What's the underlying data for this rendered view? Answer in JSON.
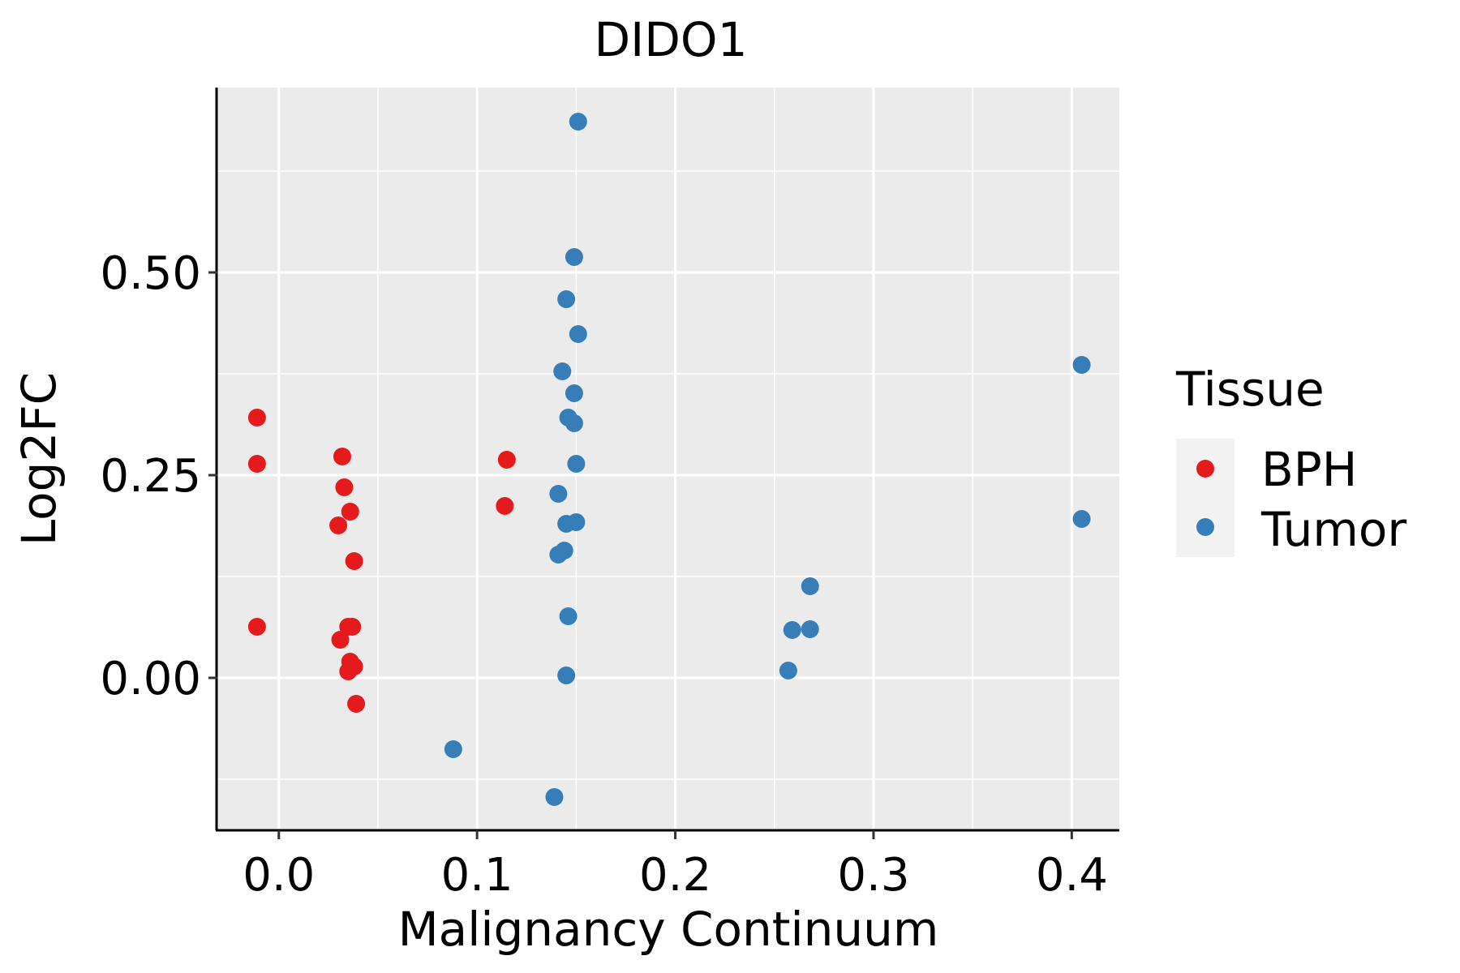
{
  "chart_data": {
    "type": "scatter",
    "title": "DIDO1",
    "xlabel": "Malignancy Continuum",
    "ylabel": "Log2FC",
    "xlim": [
      -0.031,
      0.424
    ],
    "ylim": [
      -0.188,
      0.728
    ],
    "x_ticks": [
      {
        "value": 0.0,
        "label": "0.0"
      },
      {
        "value": 0.1,
        "label": "0.1"
      },
      {
        "value": 0.2,
        "label": "0.2"
      },
      {
        "value": 0.3,
        "label": "0.3"
      },
      {
        "value": 0.4,
        "label": "0.4"
      }
    ],
    "y_ticks": [
      {
        "value": 0.0,
        "label": "0.00"
      },
      {
        "value": 0.25,
        "label": "0.25"
      },
      {
        "value": 0.5,
        "label": "0.50"
      }
    ],
    "x_minor": [
      0.05,
      0.15,
      0.25,
      0.35
    ],
    "y_minor": [
      -0.125,
      0.125,
      0.375,
      0.625
    ],
    "grid": true,
    "legend": {
      "title": "Tissue",
      "position": "right"
    },
    "series": [
      {
        "name": "BPH",
        "color": "#E41A1C",
        "points": [
          {
            "x": -0.011,
            "y": 0.321
          },
          {
            "x": -0.011,
            "y": 0.264
          },
          {
            "x": -0.011,
            "y": 0.063
          },
          {
            "x": 0.032,
            "y": 0.273
          },
          {
            "x": 0.033,
            "y": 0.235
          },
          {
            "x": 0.036,
            "y": 0.205
          },
          {
            "x": 0.03,
            "y": 0.188
          },
          {
            "x": 0.038,
            "y": 0.144
          },
          {
            "x": 0.035,
            "y": 0.063
          },
          {
            "x": 0.037,
            "y": 0.063
          },
          {
            "x": 0.031,
            "y": 0.047
          },
          {
            "x": 0.036,
            "y": 0.02
          },
          {
            "x": 0.038,
            "y": 0.014
          },
          {
            "x": 0.035,
            "y": 0.008
          },
          {
            "x": 0.039,
            "y": -0.032
          },
          {
            "x": 0.115,
            "y": 0.269
          },
          {
            "x": 0.114,
            "y": 0.212
          }
        ]
      },
      {
        "name": "Tumor",
        "color": "#377EB8",
        "points": [
          {
            "x": 0.151,
            "y": 0.686
          },
          {
            "x": 0.149,
            "y": 0.519
          },
          {
            "x": 0.145,
            "y": 0.467
          },
          {
            "x": 0.151,
            "y": 0.424
          },
          {
            "x": 0.143,
            "y": 0.378
          },
          {
            "x": 0.149,
            "y": 0.351
          },
          {
            "x": 0.146,
            "y": 0.321
          },
          {
            "x": 0.149,
            "y": 0.314
          },
          {
            "x": 0.15,
            "y": 0.264
          },
          {
            "x": 0.141,
            "y": 0.227
          },
          {
            "x": 0.145,
            "y": 0.19
          },
          {
            "x": 0.15,
            "y": 0.192
          },
          {
            "x": 0.144,
            "y": 0.157
          },
          {
            "x": 0.141,
            "y": 0.152
          },
          {
            "x": 0.146,
            "y": 0.076
          },
          {
            "x": 0.145,
            "y": 0.003
          },
          {
            "x": 0.088,
            "y": -0.088
          },
          {
            "x": 0.139,
            "y": -0.147
          },
          {
            "x": 0.268,
            "y": 0.113
          },
          {
            "x": 0.259,
            "y": 0.059
          },
          {
            "x": 0.268,
            "y": 0.06
          },
          {
            "x": 0.257,
            "y": 0.009
          },
          {
            "x": 0.405,
            "y": 0.386
          },
          {
            "x": 0.405,
            "y": 0.196
          }
        ]
      }
    ]
  }
}
